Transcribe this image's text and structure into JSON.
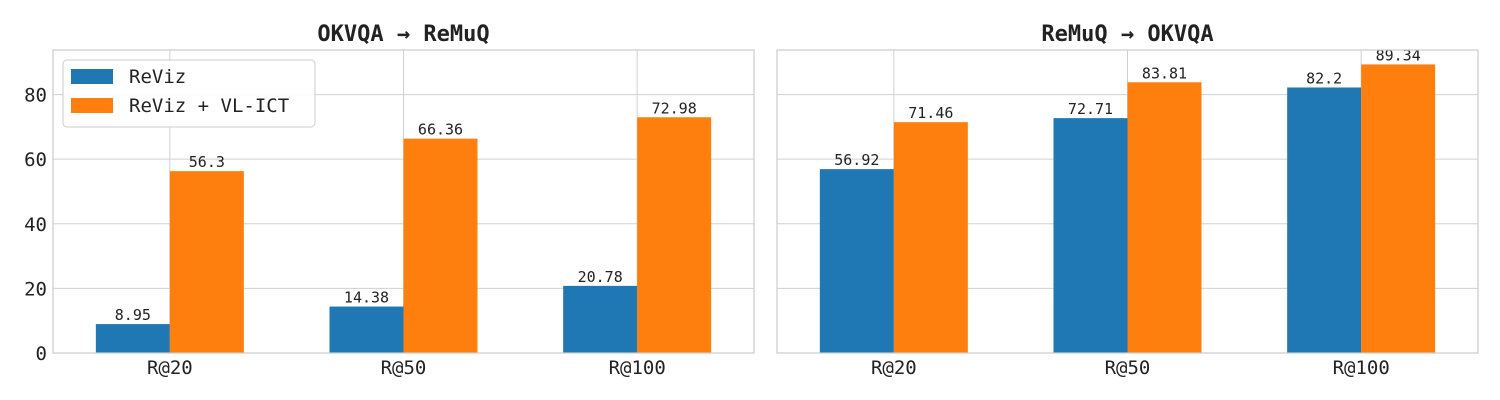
{
  "chart_data": [
    {
      "type": "bar",
      "title": "OKVQA → ReMuQ",
      "categories": [
        "R@20",
        "R@50",
        "R@100"
      ],
      "series": [
        {
          "name": "ReViz",
          "values": [
            8.95,
            14.38,
            20.78
          ],
          "color": "#1f77b4"
        },
        {
          "name": "ReViz + VL-ICT",
          "values": [
            56.3,
            66.36,
            72.98
          ],
          "color": "#ff7f0e"
        }
      ],
      "yticks": [
        "0",
        "20",
        "40",
        "60",
        "80"
      ],
      "ylim": [
        0,
        93.8
      ],
      "grid": true,
      "legend": "top-left"
    },
    {
      "type": "bar",
      "title": "ReMuQ → OKVQA",
      "categories": [
        "R@20",
        "R@50",
        "R@100"
      ],
      "series": [
        {
          "name": "ReViz",
          "values": [
            56.92,
            72.71,
            82.2
          ],
          "color": "#1f77b4"
        },
        {
          "name": "ReViz + VL-ICT",
          "values": [
            71.46,
            83.81,
            89.34
          ],
          "color": "#ff7f0e"
        }
      ],
      "ylim": [
        0,
        93.8
      ],
      "grid": true
    }
  ]
}
